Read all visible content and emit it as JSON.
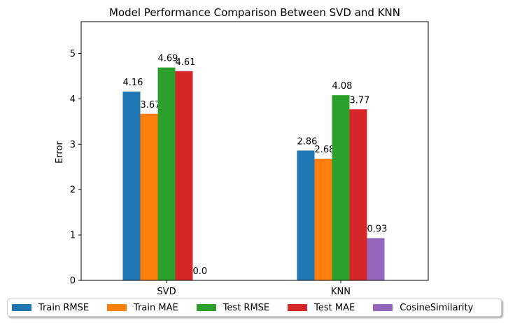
{
  "chart_data": {
    "type": "bar",
    "title": "Model Performance Comparison Between SVD and KNN",
    "xlabel": "",
    "ylabel": "Error",
    "categories": [
      "SVD",
      "KNN"
    ],
    "ylim": [
      0,
      5.7
    ],
    "yticks": [
      0,
      1,
      2,
      3,
      4,
      5
    ],
    "grid": false,
    "legend_position": "bottom-center",
    "series": [
      {
        "name": "Train RMSE",
        "color": "#1f77b4",
        "values": [
          4.16,
          2.86
        ],
        "labels": [
          "4.16",
          "2.86"
        ]
      },
      {
        "name": "Train MAE",
        "color": "#ff7f0e",
        "values": [
          3.67,
          2.68
        ],
        "labels": [
          "3.67",
          "2.68"
        ]
      },
      {
        "name": "Test RMSE",
        "color": "#2ca02c",
        "values": [
          4.69,
          4.08
        ],
        "labels": [
          "4.69",
          "4.08"
        ]
      },
      {
        "name": "Test MAE",
        "color": "#d62728",
        "values": [
          4.61,
          3.77
        ],
        "labels": [
          "4.61",
          "3.77"
        ]
      },
      {
        "name": "CosineSimilarity",
        "color": "#9467bd",
        "values": [
          0.0,
          0.93
        ],
        "labels": [
          "0.0",
          "0.93"
        ]
      }
    ]
  }
}
